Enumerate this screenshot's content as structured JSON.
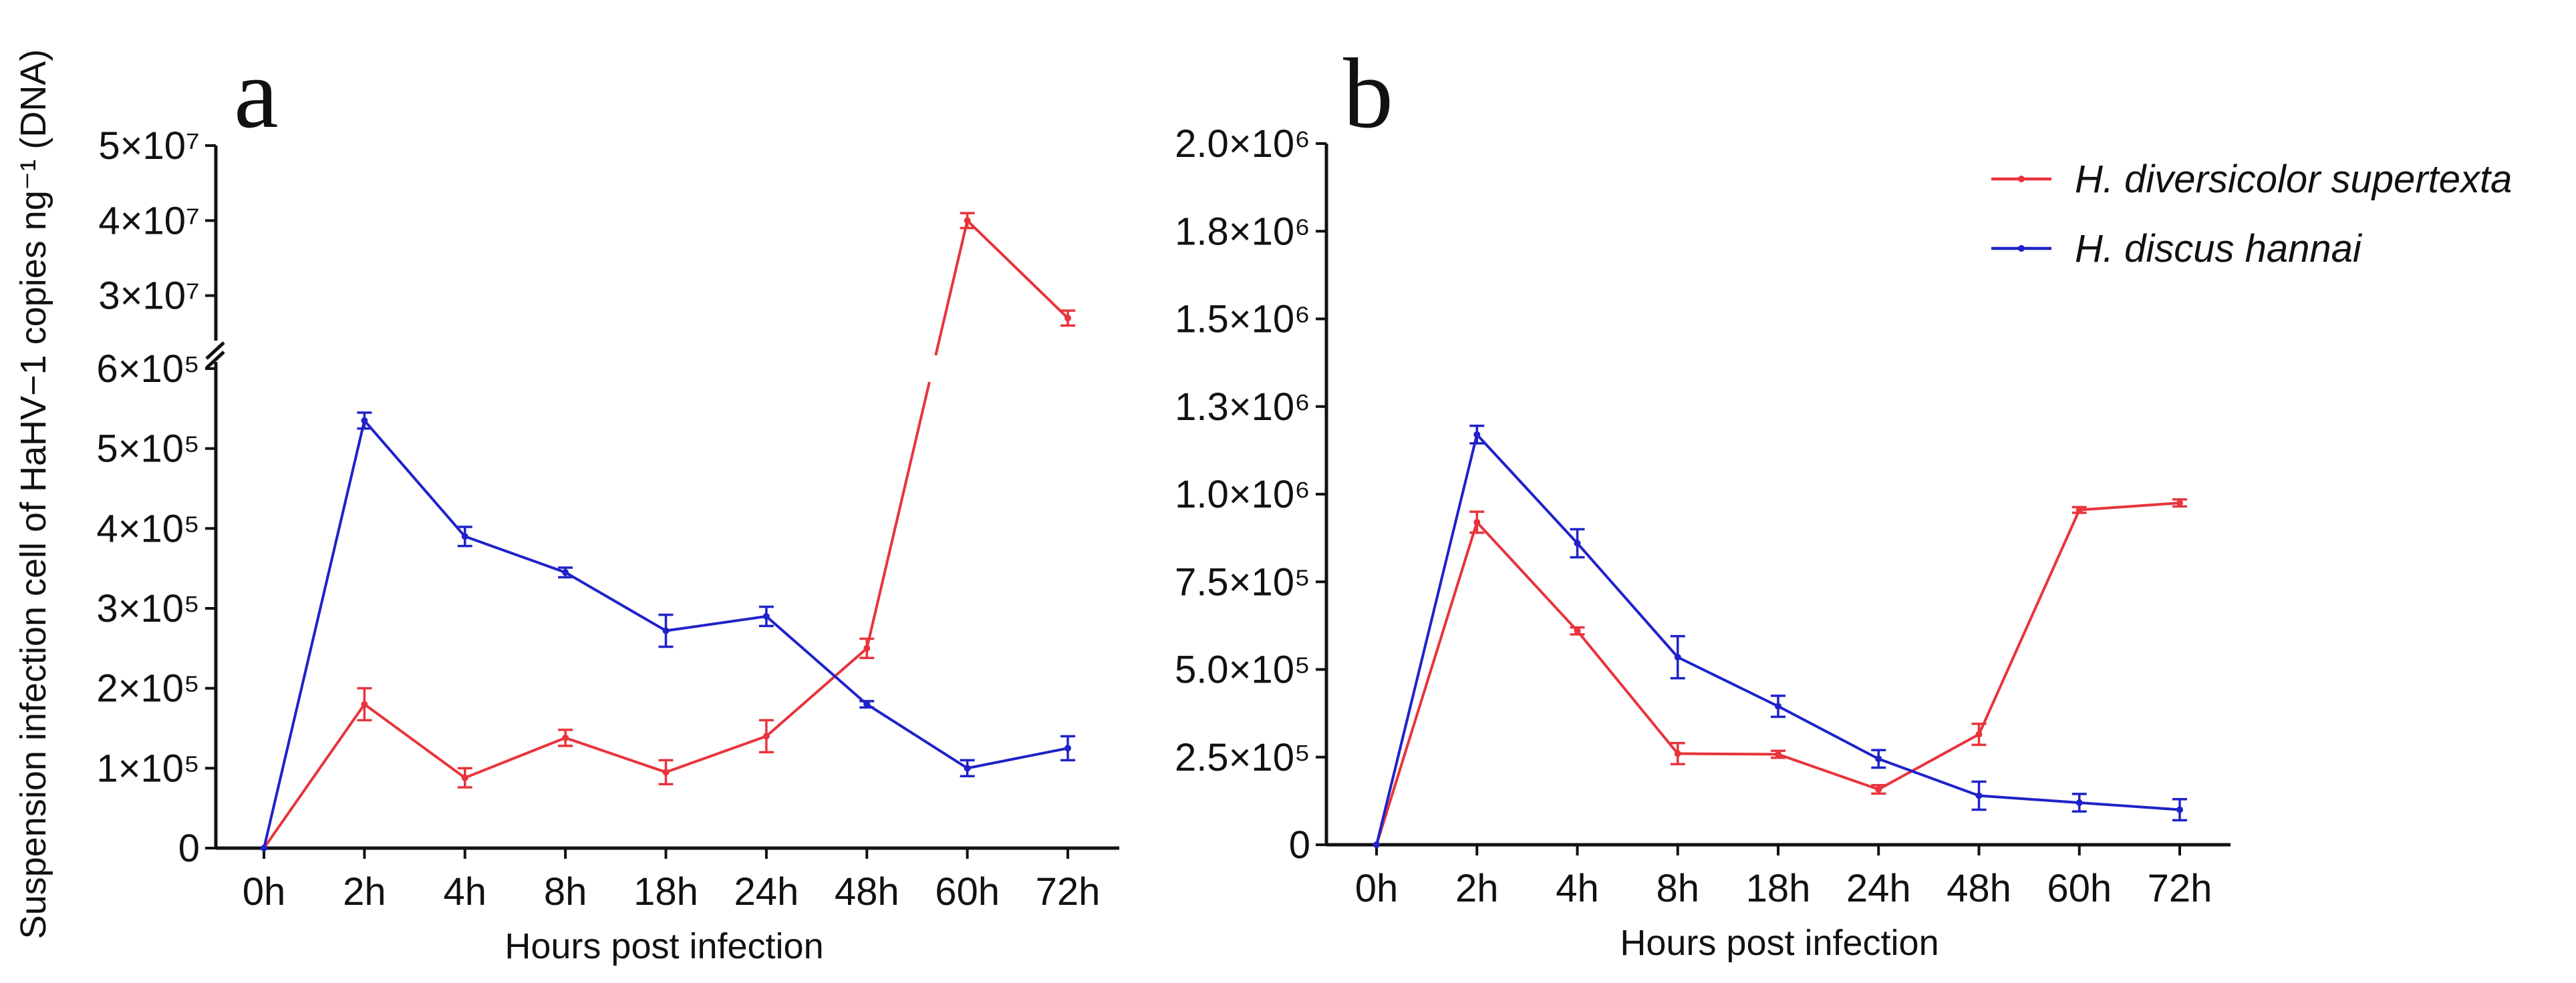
{
  "figure": {
    "y_axis_title": "Suspension infection cell of HaHV−1 copies ng⁻¹ (DNA)"
  },
  "colors": {
    "red": "#e8343c",
    "blue": "#1f22c8",
    "axis": "#111111"
  },
  "legend": [
    {
      "label": "H. diversicolor supertexta",
      "color": "#e8343c"
    },
    {
      "label": "H. discus hannai",
      "color": "#1f22c8"
    }
  ],
  "chart_data": [
    {
      "panel": "a",
      "type": "line",
      "xlabel": "Hours post infection",
      "categories": [
        "0h",
        "2h",
        "4h",
        "8h",
        "18h",
        "24h",
        "48h",
        "60h",
        "72h"
      ],
      "broken_y_axis": true,
      "lower_segment": {
        "ylim": [
          0,
          600000
        ],
        "ticks": [
          {
            "value": 0,
            "label": "0"
          },
          {
            "value": 100000,
            "label": "1×10⁵"
          },
          {
            "value": 200000,
            "label": "2×10⁵"
          },
          {
            "value": 300000,
            "label": "3×10⁵"
          },
          {
            "value": 400000,
            "label": "4×10⁵"
          },
          {
            "value": 500000,
            "label": "5×10⁵"
          },
          {
            "value": 600000,
            "label": "6×10⁵"
          }
        ]
      },
      "upper_segment": {
        "ylim": [
          24000000,
          50000000
        ],
        "ticks": [
          {
            "value": 30000000,
            "label": "3×10⁷"
          },
          {
            "value": 40000000,
            "label": "4×10⁷"
          },
          {
            "value": 50000000,
            "label": "5×10⁷"
          }
        ]
      },
      "series": [
        {
          "name": "H. diversicolor supertexta",
          "color": "#e8343c",
          "values": [
            0,
            180000,
            88000,
            138000,
            95000,
            140000,
            250000,
            40000000,
            27000000
          ],
          "errors": [
            0,
            20000,
            12000,
            10000,
            15000,
            20000,
            12000,
            1000000,
            1000000
          ]
        },
        {
          "name": "H. discus hannai",
          "color": "#1f22c8",
          "values": [
            0,
            535000,
            390000,
            345000,
            272000,
            290000,
            180000,
            100000,
            125000
          ],
          "errors": [
            0,
            10000,
            12000,
            6000,
            20000,
            12000,
            4000,
            10000,
            15000
          ]
        }
      ]
    },
    {
      "panel": "b",
      "type": "line",
      "xlabel": "Hours post infection",
      "categories": [
        "0h",
        "2h",
        "4h",
        "8h",
        "18h",
        "24h",
        "48h",
        "60h",
        "72h"
      ],
      "ylim": [
        0,
        2000000
      ],
      "yticks": [
        {
          "value": 0,
          "label": "0"
        },
        {
          "value": 250000,
          "label": "2.5×10⁵"
        },
        {
          "value": 500000,
          "label": "5.0×10⁵"
        },
        {
          "value": 750000,
          "label": "7.5×10⁵"
        },
        {
          "value": 1000000,
          "label": "1.0×10⁶"
        },
        {
          "value": 1250000,
          "label": "1.3×10⁶"
        },
        {
          "value": 1500000,
          "label": "1.5×10⁶"
        },
        {
          "value": 1750000,
          "label": "1.8×10⁶"
        },
        {
          "value": 2000000,
          "label": "2.0×10⁶"
        }
      ],
      "series": [
        {
          "name": "H. diversicolor supertexta",
          "color": "#e8343c",
          "values": [
            0,
            920000,
            610000,
            260000,
            258000,
            158000,
            315000,
            955000,
            975000
          ],
          "errors": [
            0,
            30000,
            10000,
            30000,
            10000,
            12000,
            30000,
            8000,
            10000
          ]
        },
        {
          "name": "H. discus hannai",
          "color": "#1f22c8",
          "values": [
            0,
            1170000,
            860000,
            535000,
            395000,
            245000,
            140000,
            120000,
            100000
          ],
          "errors": [
            0,
            25000,
            40000,
            60000,
            30000,
            25000,
            40000,
            25000,
            30000
          ]
        }
      ]
    }
  ]
}
